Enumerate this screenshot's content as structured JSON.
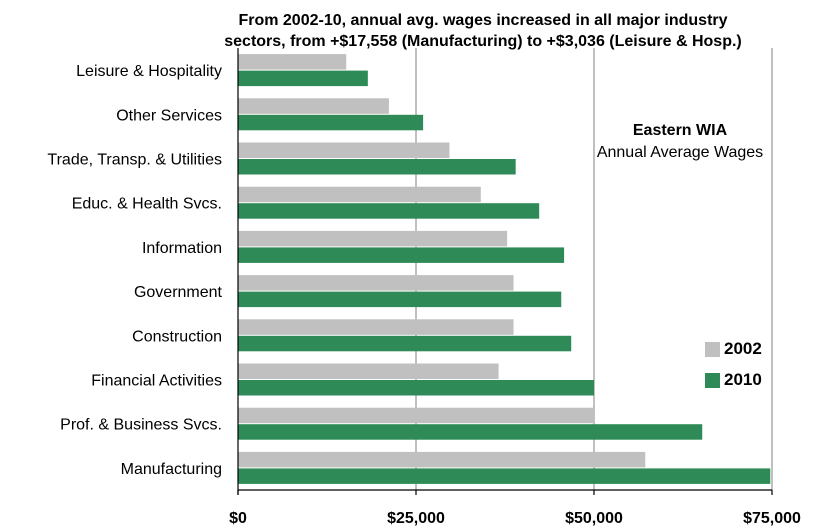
{
  "title_line1": "From 2002-10, annual avg. wages increased in all major industry",
  "title_line2": "sectors, from +$17,558 (Manufacturing) to +$3,036 (Leisure & Hosp.)",
  "legend": {
    "heading": "Eastern WIA",
    "subtitle": "Annual Average Wages",
    "colors": {
      "2002": "#c0c0c0",
      "2010": "#2e8b57"
    }
  },
  "chart_data": {
    "type": "bar",
    "orientation": "horizontal",
    "categories": [
      "Leisure & Hospitality",
      "Other Services",
      "Trade, Transp. & Utilities",
      "Educ. & Health Svcs.",
      "Information",
      "Government",
      "Construction",
      "Financial Activities",
      "Prof. & Business Svcs.",
      "Manufacturing"
    ],
    "series": [
      {
        "name": "2002",
        "color": "#c0c0c0",
        "values": [
          15200,
          21200,
          29700,
          34100,
          37800,
          38700,
          38700,
          36600,
          50000,
          57200
        ]
      },
      {
        "name": "2010",
        "color": "#2e8b57",
        "values": [
          18236,
          26000,
          39000,
          42300,
          45800,
          45400,
          46800,
          50000,
          65200,
          74758
        ]
      }
    ],
    "xlim": [
      0,
      75000
    ],
    "xticks": [
      0,
      25000,
      50000,
      75000
    ],
    "xtick_labels": [
      "$0",
      "$25,000",
      "$50,000",
      "$75,000"
    ],
    "grid": "vertical",
    "legend_position": "right"
  }
}
